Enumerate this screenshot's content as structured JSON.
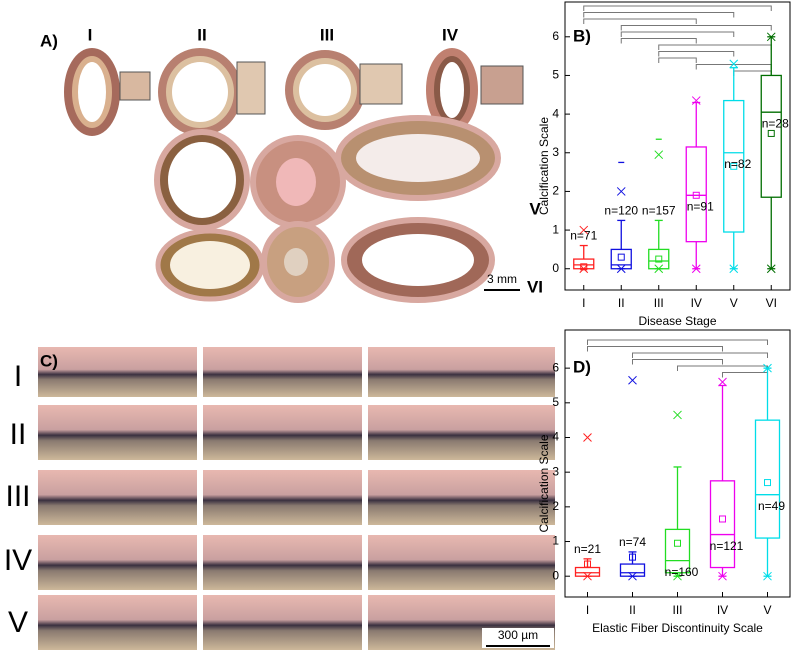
{
  "panels": {
    "A": {
      "label": "A)",
      "stage_labels": [
        "I",
        "II",
        "III",
        "IV",
        "V",
        "VI"
      ],
      "scale_bar": "3 mm"
    },
    "C": {
      "label": "C)",
      "row_labels": [
        "I",
        "II",
        "III",
        "IV",
        "V"
      ],
      "scale_bar": "300 µm"
    }
  },
  "chart_data": [
    {
      "type": "box",
      "panel_label": "B)",
      "y_label": "Calcification Scale",
      "x_label": "Disease Stage",
      "categories": [
        "I",
        "II",
        "III",
        "IV",
        "V",
        "VI"
      ],
      "colors": [
        "#ff2020",
        "#1010e0",
        "#22dd22",
        "#ee00ee",
        "#00dde8",
        "#006e00"
      ],
      "whisker_low": [
        0,
        0,
        0,
        0,
        0,
        0
      ],
      "q1": [
        0,
        0,
        0,
        0.7,
        0.95,
        1.85
      ],
      "median": [
        0.1,
        0.1,
        0.2,
        1.9,
        3.0,
        4.05
      ],
      "q3": [
        0.25,
        0.5,
        0.5,
        3.15,
        4.35,
        5.0
      ],
      "whisker_high": [
        0.6,
        1.25,
        1.25,
        4.3,
        5.2,
        6.0
      ],
      "mean": [
        0.05,
        0.3,
        0.25,
        1.9,
        2.65,
        3.5
      ],
      "min": [
        0,
        0,
        0,
        0,
        0,
        0
      ],
      "max": [
        1.0,
        2.0,
        2.95,
        4.35,
        5.3,
        6.0
      ],
      "outliers": [
        null,
        2.75,
        3.35,
        null,
        null,
        null
      ],
      "n_labels": [
        "n=71",
        "n=120",
        "n=157",
        "n=91",
        "n=82",
        "n=28"
      ],
      "ylim": [
        -0.55,
        6.9
      ],
      "yticks": [
        0,
        1,
        2,
        3,
        4,
        5,
        6
      ]
    },
    {
      "type": "box",
      "panel_label": "D)",
      "y_label": "Calcification Scale",
      "x_label": "Elastic Fiber Discontinuity Scale",
      "categories": [
        "I",
        "II",
        "III",
        "IV",
        "V"
      ],
      "colors": [
        "#ff2020",
        "#1010e0",
        "#22dd22",
        "#ee00ee",
        "#00dde8"
      ],
      "whisker_low": [
        0,
        0,
        0,
        0,
        0
      ],
      "q1": [
        0,
        0,
        0.1,
        0.25,
        1.1
      ],
      "median": [
        0.1,
        0.1,
        0.45,
        1.2,
        2.35
      ],
      "q3": [
        0.25,
        0.35,
        1.35,
        2.75,
        4.5
      ],
      "whisker_high": [
        0.5,
        0.7,
        3.15,
        5.5,
        6.0
      ],
      "mean": [
        0.35,
        0.55,
        0.95,
        1.65,
        2.7
      ],
      "min": [
        0,
        0,
        0,
        0,
        0
      ],
      "max": [
        4.0,
        5.65,
        4.65,
        5.6,
        6.0
      ],
      "outliers": [
        null,
        null,
        null,
        null,
        null
      ],
      "n_labels": [
        "n=21",
        "n=74",
        "n=160",
        "n=121",
        "n=49"
      ],
      "ylim": [
        -0.6,
        7.1
      ],
      "yticks": [
        0,
        1,
        2,
        3,
        4,
        5,
        6
      ]
    }
  ]
}
